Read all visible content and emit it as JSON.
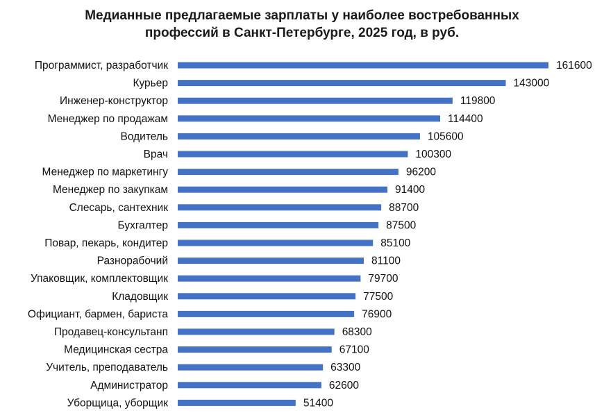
{
  "chart_data": {
    "type": "bar",
    "orientation": "horizontal",
    "title_line1": "Медианные предлагаемые зарплаты у наиболее востребованных",
    "title_line2": "профессий в Санкт-Петербурге, 2025 год, в руб.",
    "bar_color": "#4472C4",
    "grid": false,
    "data_labels": true,
    "xlim": [
      0,
      161600
    ],
    "categories": [
      "Программист, разработчик",
      "Курьер",
      "Инженер-конструктор",
      "Менеджер по продажам",
      "Водитель",
      "Врач",
      "Менеджер по маркетингу",
      "Менеджер по закупкам",
      "Слесарь, сантехник",
      "Бухгалтер",
      "Повар, пекарь, кондитер",
      "Разнорабочий",
      "Упаковщик, комплектовщик",
      "Кладовщик",
      "Официант, бармен, бариста",
      "Продавец-консультанп",
      "Медицинская сестра",
      "Учитель, преподаватель",
      "Администратор",
      "Уборщица, уборщик"
    ],
    "values": [
      161600,
      143000,
      119800,
      114400,
      105600,
      100300,
      96200,
      91400,
      88700,
      87500,
      85100,
      81100,
      79700,
      77500,
      76900,
      68300,
      67100,
      63300,
      62600,
      51400
    ]
  }
}
